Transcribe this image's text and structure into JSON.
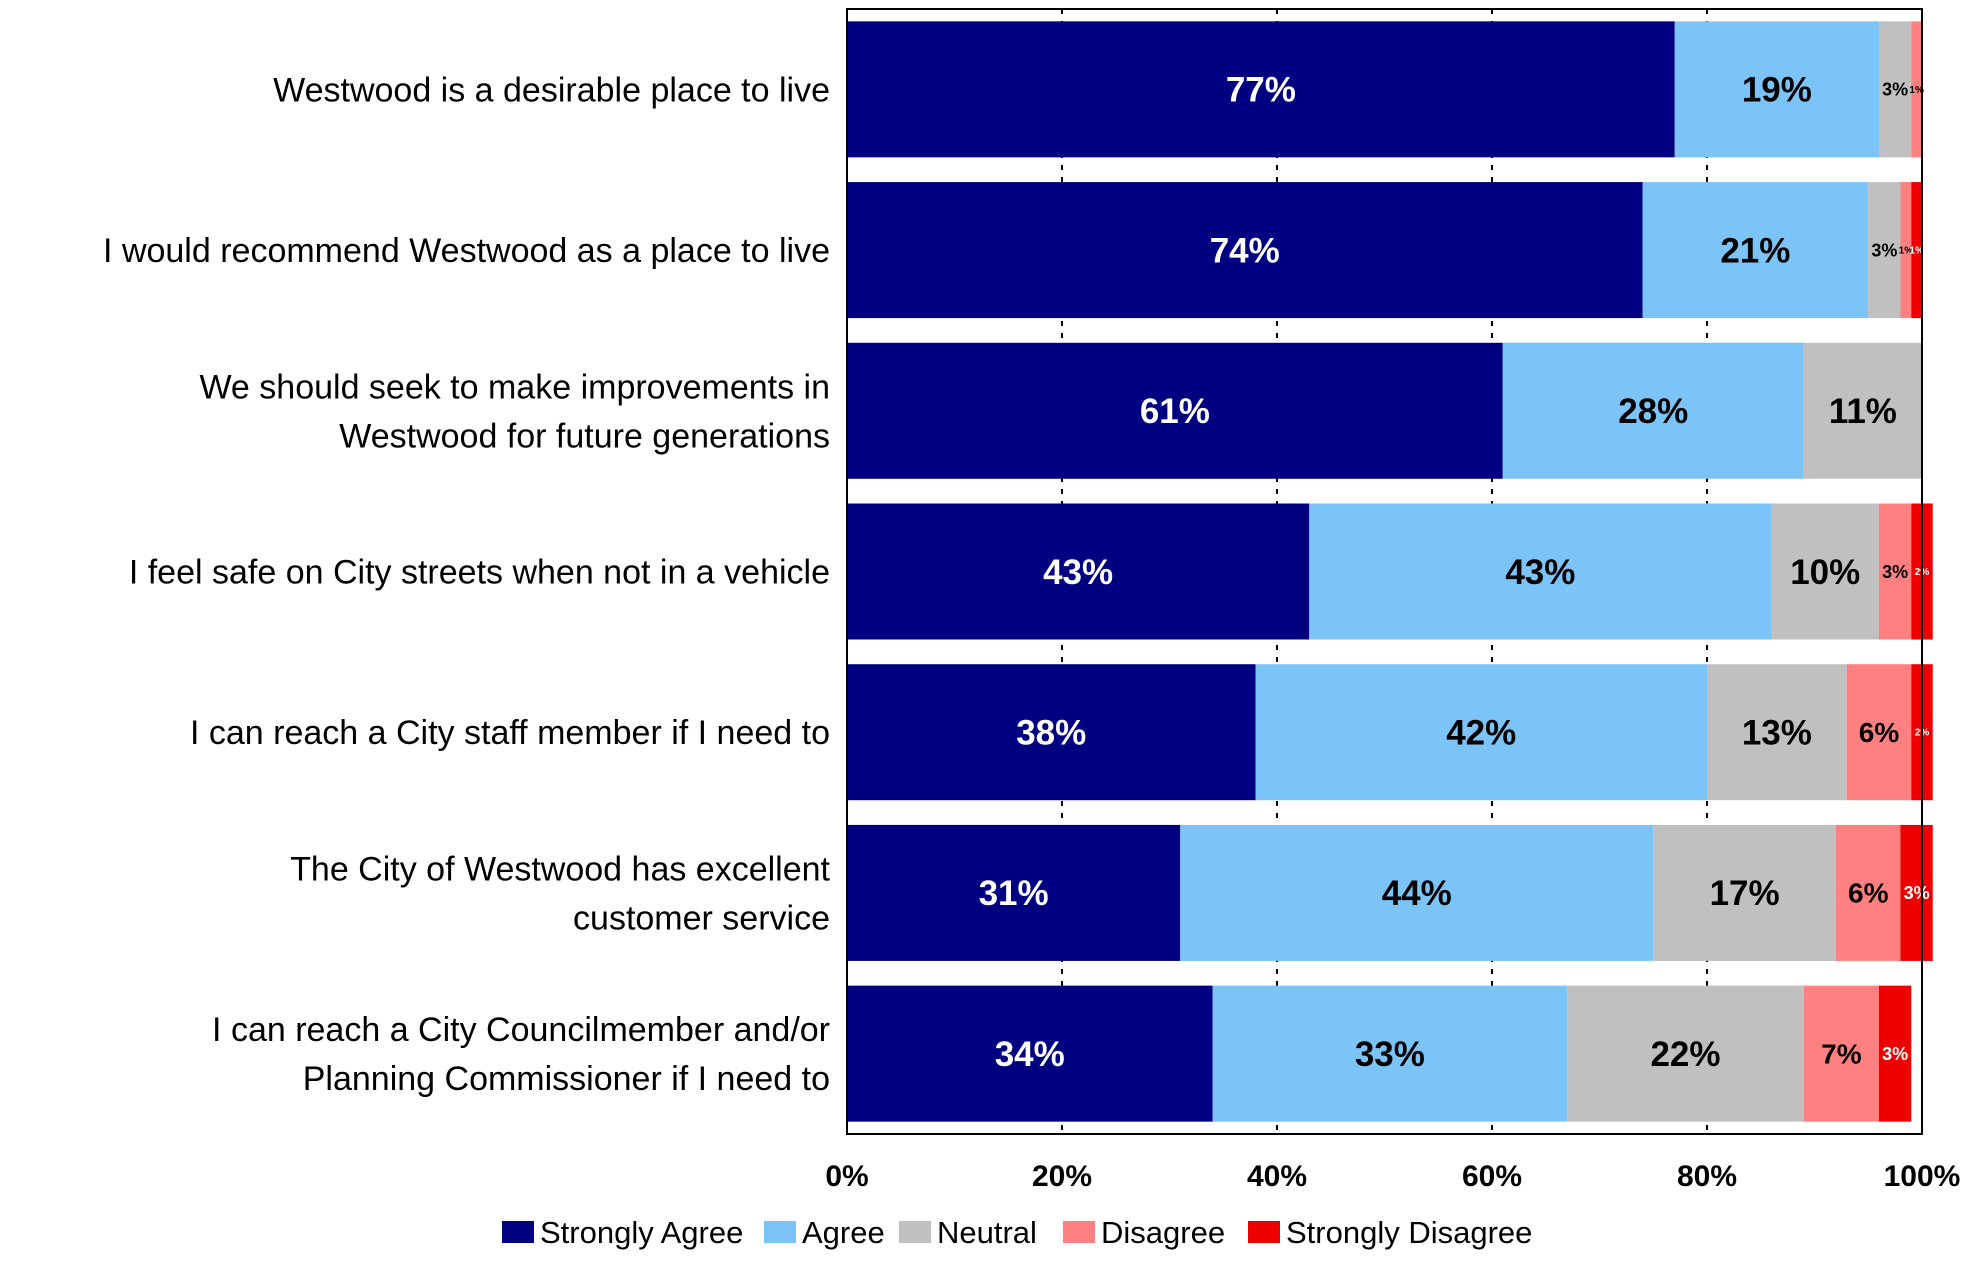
{
  "chart_data": {
    "type": "bar",
    "orientation": "horizontal",
    "stacked": true,
    "title": "",
    "xlabel": "",
    "ylabel": "",
    "xlim": [
      0,
      100
    ],
    "x_ticks": [
      "0%",
      "20%",
      "40%",
      "60%",
      "80%",
      "100%"
    ],
    "grid": "vertical dashed",
    "legend_position": "bottom",
    "categories": [
      [
        "Westwood is a desirable place to live"
      ],
      [
        "I would recommend Westwood as a place to live"
      ],
      [
        "We should seek to make improvements in",
        "Westwood for future generations"
      ],
      [
        "I feel safe on City streets when not in a vehicle"
      ],
      [
        "I can reach a City staff member if I need to"
      ],
      [
        "The City of Westwood has excellent",
        "customer service"
      ],
      [
        "I can reach a City Councilmember and/or",
        "Planning Commissioner if I need to"
      ]
    ],
    "series": [
      {
        "name": "Strongly Agree",
        "color": "#000080",
        "label_color": "#ffffff",
        "values": [
          77,
          74,
          61,
          43,
          38,
          31,
          34
        ],
        "labels": [
          "77%",
          "74%",
          "61%",
          "43%",
          "38%",
          "31%",
          "34%"
        ]
      },
      {
        "name": "Agree",
        "color": "#7cc3f8",
        "label_color": "#000000",
        "values": [
          19,
          21,
          28,
          43,
          42,
          44,
          33
        ],
        "labels": [
          "19%",
          "21%",
          "28%",
          "43%",
          "42%",
          "44%",
          "33%"
        ]
      },
      {
        "name": "Neutral",
        "color": "#c0c0c0",
        "label_color": "#000000",
        "values": [
          3,
          3,
          11,
          10,
          13,
          17,
          22
        ],
        "labels": [
          "3%",
          "3%",
          "11%",
          "10%",
          "13%",
          "17%",
          "22%"
        ]
      },
      {
        "name": "Disagree",
        "color": "#ff8080",
        "label_color": "#000000",
        "values": [
          1,
          1,
          0,
          3,
          6,
          6,
          7
        ],
        "labels": [
          "1%",
          "1%",
          "",
          "3%",
          "6%",
          "6%",
          "7%"
        ]
      },
      {
        "name": "Strongly Disagree",
        "color": "#ee0000",
        "label_color": "#ffffff",
        "values": [
          0,
          1,
          0,
          2,
          2,
          3,
          3
        ],
        "labels": [
          "",
          "1%",
          "",
          "2%",
          "2%",
          "3%",
          "3%"
        ]
      }
    ]
  }
}
